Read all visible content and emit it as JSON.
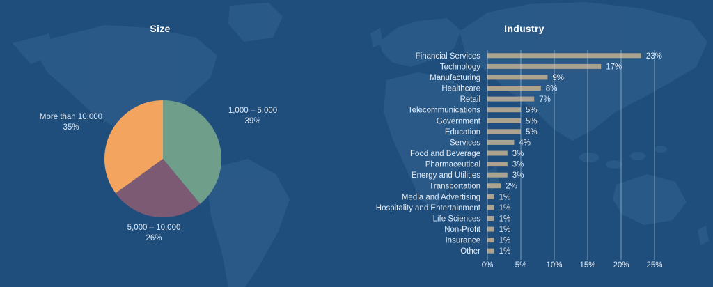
{
  "page": {
    "background_color": "#1f4e7d",
    "map_color": "#2b5b89",
    "text_color": "#dde8f1",
    "title_color": "#ffffff"
  },
  "chart_data": [
    {
      "type": "pie",
      "title": "Size",
      "direction": "clockwise",
      "start_angle_deg": 0,
      "slices": [
        {
          "label": "1,000 – 5,000",
          "value": 39,
          "percent_label": "39%",
          "color": "#6f9e8b"
        },
        {
          "label": "5,000 – 10,000",
          "value": 26,
          "percent_label": "26%",
          "color": "#7d5a74"
        },
        {
          "label": "More than 10,000",
          "value": 35,
          "percent_label": "35%",
          "color": "#f3a55f"
        }
      ]
    },
    {
      "type": "bar",
      "title": "Industry",
      "orientation": "horizontal",
      "bar_color": "#aba28f",
      "gridline_color": "#cddceb",
      "value_suffix": "%",
      "xlim": [
        0,
        25
      ],
      "x_ticks": [
        {
          "value": 0,
          "label": "0%"
        },
        {
          "value": 5,
          "label": "5%"
        },
        {
          "value": 10,
          "label": "10%"
        },
        {
          "value": 15,
          "label": "15%"
        },
        {
          "value": 20,
          "label": "20%"
        },
        {
          "value": 25,
          "label": "25%"
        }
      ],
      "categories": [
        "Financial Services",
        "Technology",
        "Manufacturing",
        "Healthcare",
        "Retail",
        "Telecommunications",
        "Government",
        "Education",
        "Services",
        "Food and Beverage",
        "Pharmaceutical",
        "Energy and Utilities",
        "Transportation",
        "Media and Advertising",
        "Hospitality and Entertainment",
        "Life Sciences",
        "Non-Profit",
        "Insurance",
        "Other"
      ],
      "values": [
        23,
        17,
        9,
        8,
        7,
        5,
        5,
        5,
        4,
        3,
        3,
        3,
        2,
        1,
        1,
        1,
        1,
        1,
        1
      ],
      "value_labels": [
        "23%",
        "17%",
        "9%",
        "8%",
        "7%",
        "5%",
        "5%",
        "5%",
        "4%",
        "3%",
        "3%",
        "3%",
        "2%",
        "1%",
        "1%",
        "1%",
        "1%",
        "1%",
        "1%"
      ]
    }
  ]
}
